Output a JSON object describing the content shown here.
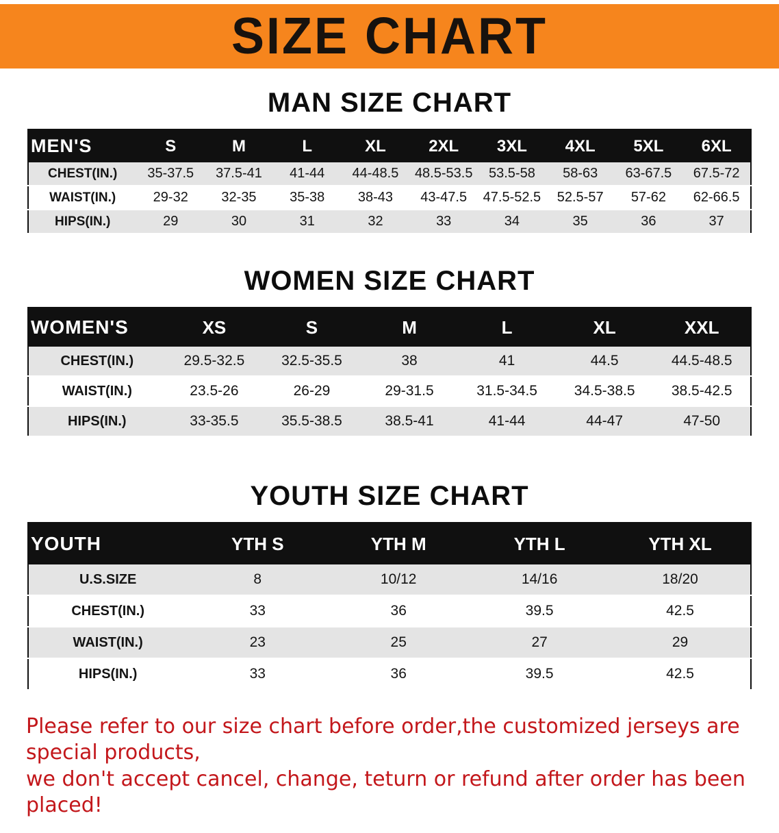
{
  "banner": {
    "title": "SIZE CHART"
  },
  "colors": {
    "banner_bg": "#f6851d",
    "table_header_bg": "#101010",
    "row_stripe": "#e4e4e4",
    "notice_text": "#c3171b"
  },
  "sections": [
    {
      "id": "men",
      "heading": "MAN SIZE CHART",
      "header": [
        "MEN'S",
        "S",
        "M",
        "L",
        "XL",
        "2XL",
        "3XL",
        "4XL",
        "5XL",
        "6XL"
      ],
      "rows": [
        [
          "CHEST(IN.)",
          "35-37.5",
          "37.5-41",
          "41-44",
          "44-48.5",
          "48.5-53.5",
          "53.5-58",
          "58-63",
          "63-67.5",
          "67.5-72"
        ],
        [
          "WAIST(IN.)",
          "29-32",
          "32-35",
          "35-38",
          "38-43",
          "43-47.5",
          "47.5-52.5",
          "52.5-57",
          "57-62",
          "62-66.5"
        ],
        [
          "HIPS(IN.)",
          "29",
          "30",
          "31",
          "32",
          "33",
          "34",
          "35",
          "36",
          "37"
        ]
      ]
    },
    {
      "id": "women",
      "heading": "WOMEN SIZE CHART",
      "header": [
        "WOMEN'S",
        "XS",
        "S",
        "M",
        "L",
        "XL",
        "XXL"
      ],
      "rows": [
        [
          "CHEST(IN.)",
          "29.5-32.5",
          "32.5-35.5",
          "38",
          "41",
          "44.5",
          "44.5-48.5"
        ],
        [
          "WAIST(IN.)",
          "23.5-26",
          "26-29",
          "29-31.5",
          "31.5-34.5",
          "34.5-38.5",
          "38.5-42.5"
        ],
        [
          "HIPS(IN.)",
          "33-35.5",
          "35.5-38.5",
          "38.5-41",
          "41-44",
          "44-47",
          "47-50"
        ]
      ]
    },
    {
      "id": "youth",
      "heading": "YOUTH SIZE CHART",
      "header": [
        "YOUTH",
        "YTH S",
        "YTH M",
        "YTH L",
        "YTH XL"
      ],
      "rows": [
        [
          "U.S.SIZE",
          "8",
          "10/12",
          "14/16",
          "18/20"
        ],
        [
          "CHEST(IN.)",
          "33",
          "36",
          "39.5",
          "42.5"
        ],
        [
          "WAIST(IN.)",
          "23",
          "25",
          "27",
          "29"
        ],
        [
          "HIPS(IN.)",
          "33",
          "36",
          "39.5",
          "42.5"
        ]
      ]
    }
  ],
  "footer": {
    "line1": "Please refer to our size chart before order,the customized jerseys are special products,",
    "line2": "we don't accept cancel, change, teturn or refund after order has been placed!"
  }
}
